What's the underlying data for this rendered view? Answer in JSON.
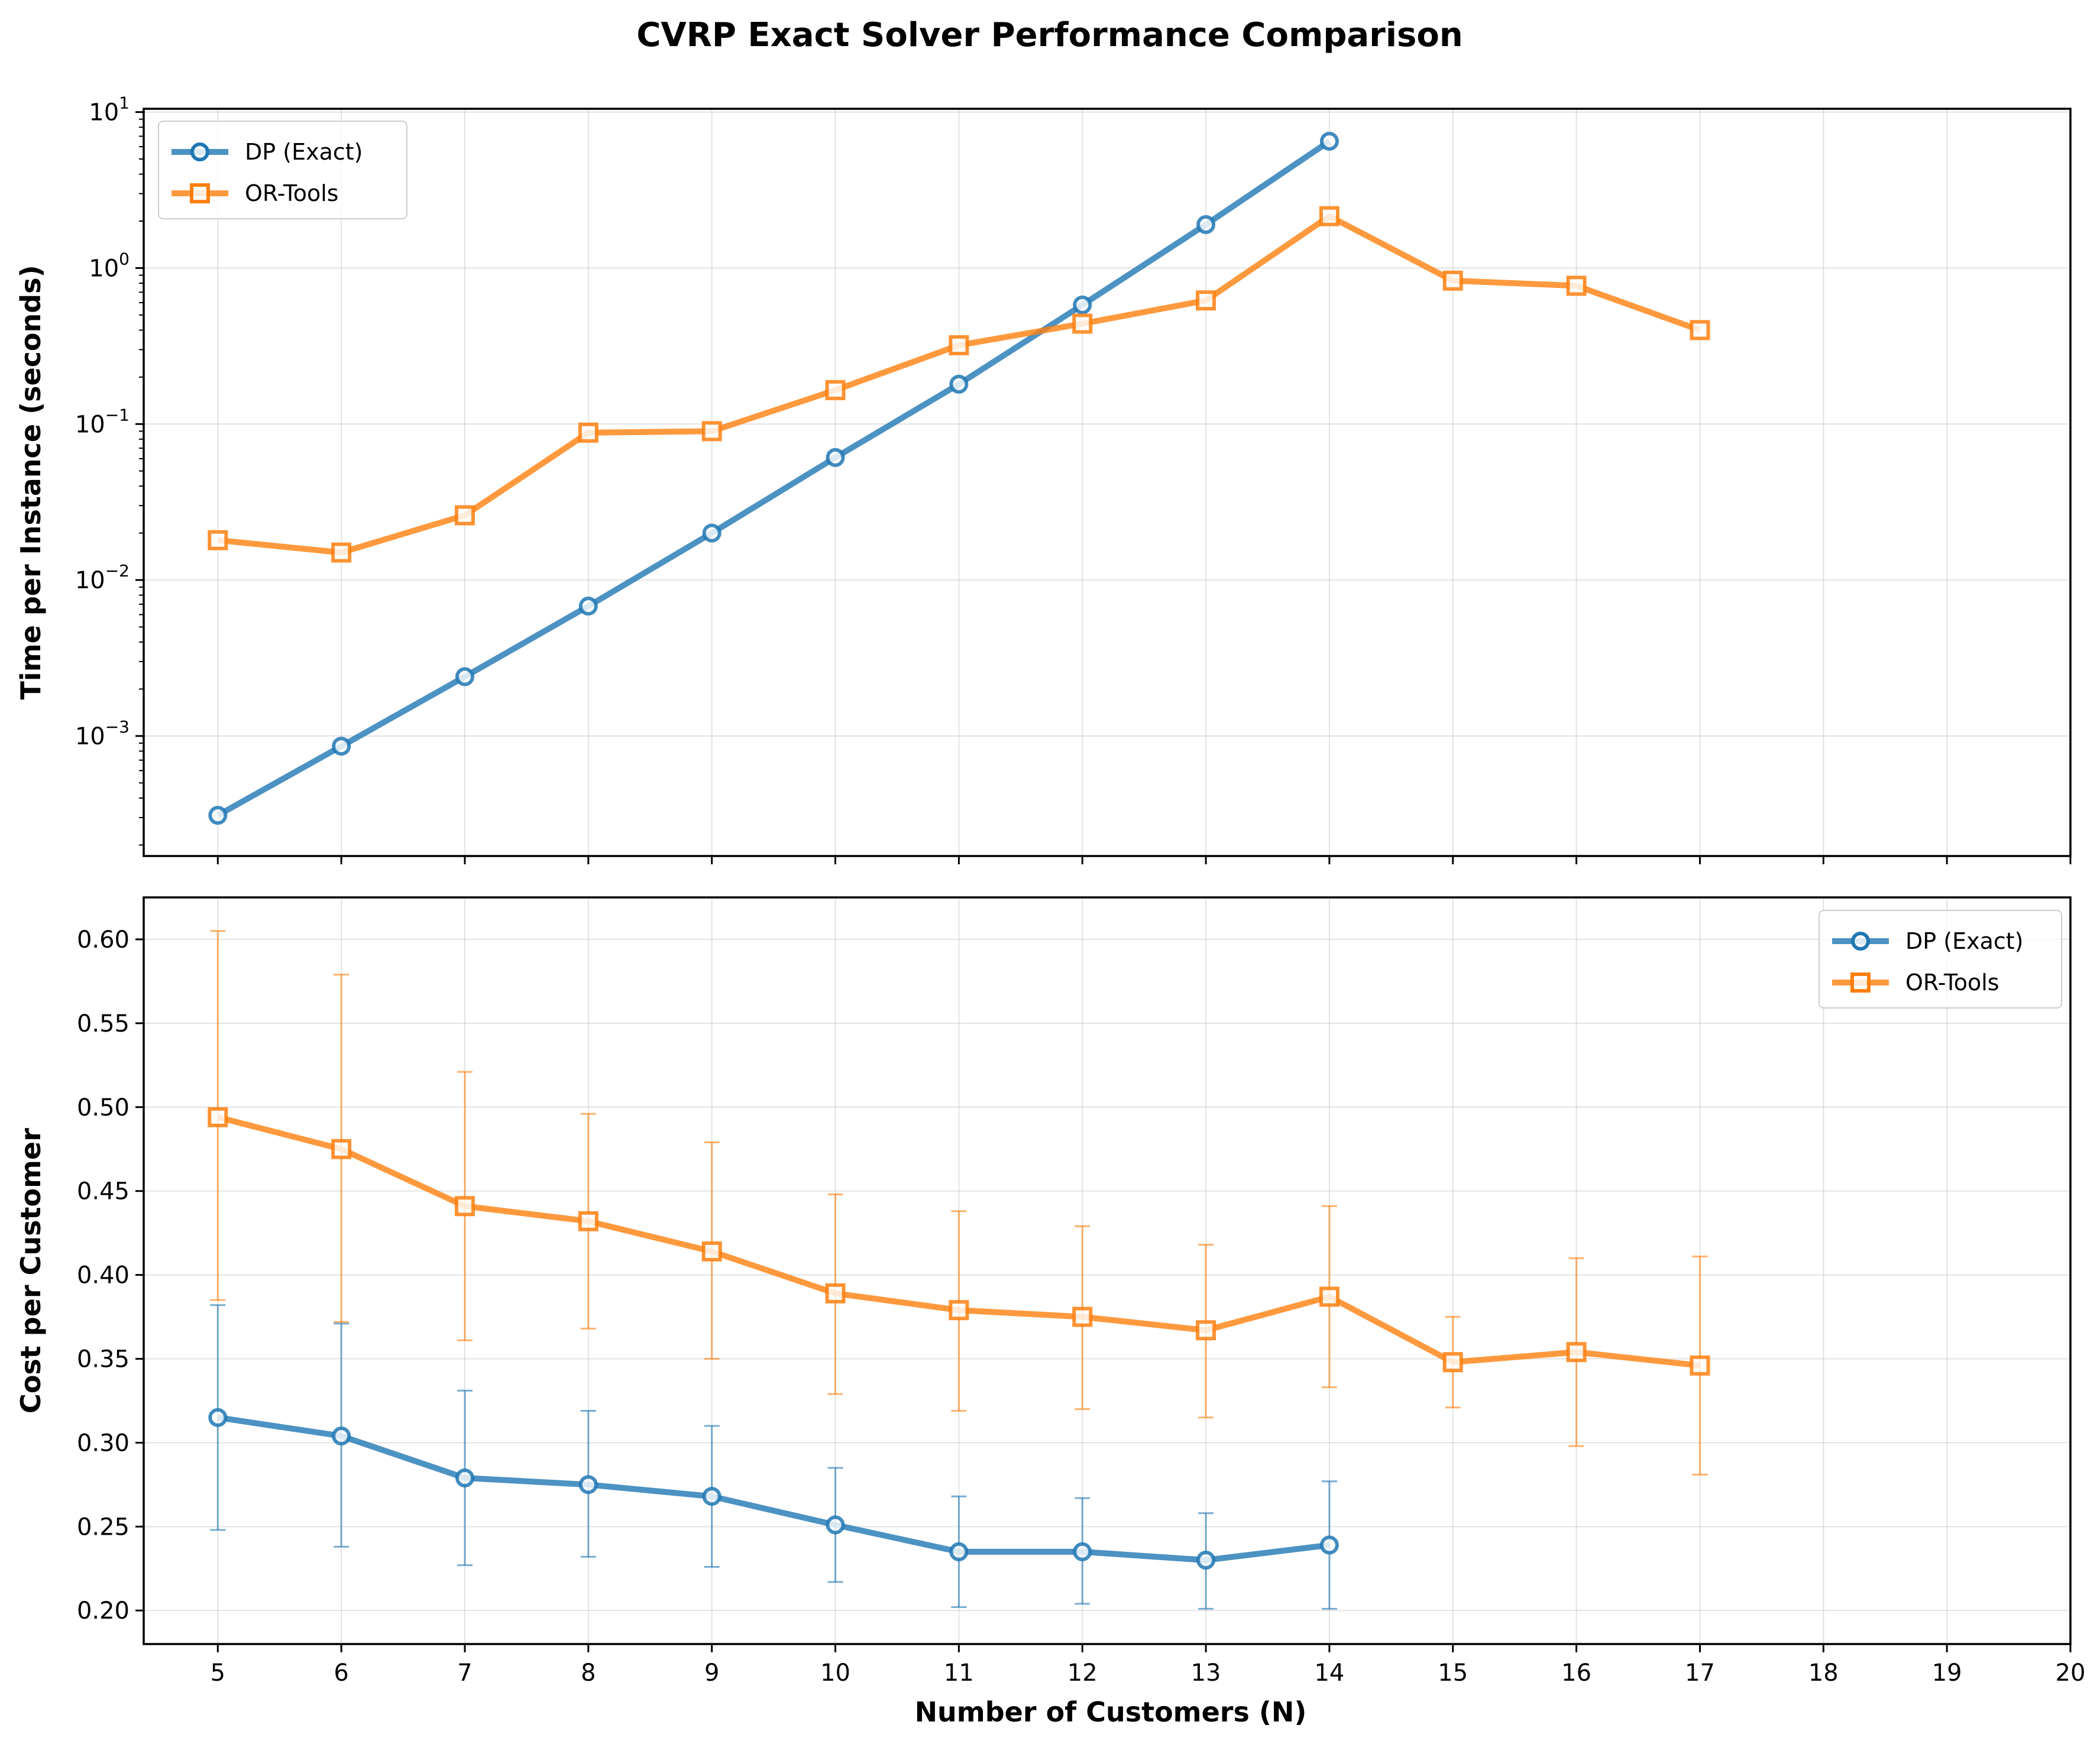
{
  "figure": {
    "title": "CVRP Exact Solver Performance Comparison",
    "xlabel": "Number of Customers (N)"
  },
  "colors": {
    "dp": "#1f77b4",
    "ortools": "#ff7f0e",
    "grid": "#b0b0b0"
  },
  "chart_data": [
    {
      "type": "line",
      "ylabel": "Time per Instance (seconds)",
      "yscale": "log",
      "ylim": [
        0.00017,
        10.5
      ],
      "xlim": [
        4.4,
        20
      ],
      "grid": true,
      "legend_position": "upper-left",
      "x_ticks": [
        5,
        6,
        7,
        8,
        9,
        10,
        11,
        12,
        13,
        14,
        15,
        16,
        17,
        18,
        19,
        20
      ],
      "y_ticks": [
        {
          "value": 0.001,
          "base": "10",
          "exp": "−3"
        },
        {
          "value": 0.01,
          "base": "10",
          "exp": "−2"
        },
        {
          "value": 0.1,
          "base": "10",
          "exp": "−1"
        },
        {
          "value": 1,
          "base": "10",
          "exp": "0"
        },
        {
          "value": 10,
          "base": "10",
          "exp": "1"
        }
      ],
      "series": [
        {
          "name": "DP (Exact)",
          "marker": "circle",
          "color_key": "dp",
          "x": [
            5,
            6,
            7,
            8,
            9,
            10,
            11,
            12,
            13,
            14
          ],
          "y": [
            0.00031,
            0.00086,
            0.0024,
            0.0068,
            0.02,
            0.061,
            0.18,
            0.58,
            1.9,
            6.5
          ]
        },
        {
          "name": "OR-Tools",
          "marker": "square",
          "color_key": "ortools",
          "x": [
            5,
            6,
            7,
            8,
            9,
            10,
            11,
            12,
            13,
            14,
            15,
            16,
            17
          ],
          "y": [
            0.018,
            0.015,
            0.026,
            0.088,
            0.09,
            0.165,
            0.32,
            0.44,
            0.62,
            2.15,
            0.83,
            0.77,
            0.4
          ]
        }
      ]
    },
    {
      "type": "line",
      "ylabel": "Cost per Customer",
      "yscale": "linear",
      "ylim": [
        0.18,
        0.625
      ],
      "xlim": [
        4.4,
        20
      ],
      "grid": true,
      "legend_position": "upper-right",
      "x_ticks": [
        5,
        6,
        7,
        8,
        9,
        10,
        11,
        12,
        13,
        14,
        15,
        16,
        17,
        18,
        19,
        20
      ],
      "y_ticks": [
        "0.20",
        "0.25",
        "0.30",
        "0.35",
        "0.40",
        "0.45",
        "0.50",
        "0.55",
        "0.60"
      ],
      "series": [
        {
          "name": "DP (Exact)",
          "marker": "circle",
          "color_key": "dp",
          "x": [
            5,
            6,
            7,
            8,
            9,
            10,
            11,
            12,
            13,
            14
          ],
          "y": [
            0.315,
            0.304,
            0.279,
            0.275,
            0.268,
            0.251,
            0.235,
            0.235,
            0.23,
            0.239
          ],
          "err_low": [
            0.248,
            0.238,
            0.227,
            0.232,
            0.226,
            0.217,
            0.202,
            0.204,
            0.201,
            0.201
          ],
          "err_high": [
            0.382,
            0.371,
            0.331,
            0.319,
            0.31,
            0.285,
            0.268,
            0.267,
            0.258,
            0.277
          ]
        },
        {
          "name": "OR-Tools",
          "marker": "square",
          "color_key": "ortools",
          "x": [
            5,
            6,
            7,
            8,
            9,
            10,
            11,
            12,
            13,
            14,
            15,
            16,
            17
          ],
          "y": [
            0.494,
            0.475,
            0.441,
            0.432,
            0.414,
            0.389,
            0.379,
            0.375,
            0.367,
            0.387,
            0.348,
            0.354,
            0.346
          ],
          "err_low": [
            0.385,
            0.372,
            0.361,
            0.368,
            0.35,
            0.329,
            0.319,
            0.32,
            0.315,
            0.333,
            0.321,
            0.298,
            0.281
          ],
          "err_high": [
            0.605,
            0.579,
            0.521,
            0.496,
            0.479,
            0.448,
            0.438,
            0.429,
            0.418,
            0.441,
            0.375,
            0.41,
            0.411
          ]
        }
      ]
    }
  ]
}
